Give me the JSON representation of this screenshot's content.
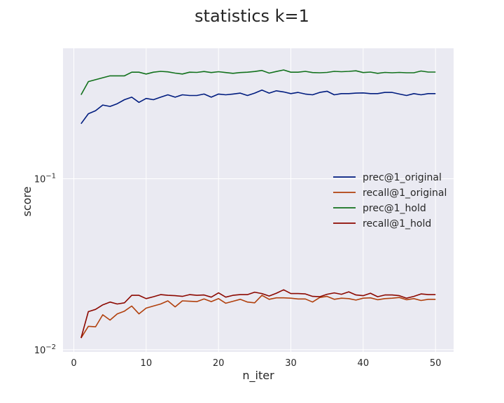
{
  "chart_data": {
    "type": "line",
    "title": "statistics k=1",
    "xlabel": "n_iter",
    "ylabel": "score",
    "yscale": "log",
    "xlim": [
      -1.5,
      52.5
    ],
    "ylim": [
      0.0097,
      0.58
    ],
    "x_ticks": [
      0,
      10,
      20,
      30,
      40,
      50
    ],
    "y_ticks": [
      {
        "value": 0.1,
        "base": "10",
        "exp": "−1"
      },
      {
        "value": 0.01,
        "base": "10",
        "exp": "−2"
      }
    ],
    "grid": true,
    "legend_position": "right",
    "x": [
      1,
      2,
      3,
      4,
      5,
      6,
      7,
      8,
      9,
      10,
      11,
      12,
      13,
      14,
      15,
      16,
      17,
      18,
      19,
      20,
      21,
      22,
      23,
      24,
      25,
      26,
      27,
      28,
      29,
      30,
      31,
      32,
      33,
      34,
      35,
      36,
      37,
      38,
      39,
      40,
      41,
      42,
      43,
      44,
      45,
      46,
      47,
      48,
      49,
      50
    ],
    "series": [
      {
        "name": "prec@1_original",
        "color": "#001c7f",
        "values": [
          0.21,
          0.24,
          0.25,
          0.27,
          0.265,
          0.275,
          0.29,
          0.3,
          0.28,
          0.295,
          0.29,
          0.3,
          0.31,
          0.3,
          0.31,
          0.307,
          0.307,
          0.313,
          0.3,
          0.313,
          0.31,
          0.313,
          0.317,
          0.307,
          0.317,
          0.33,
          0.317,
          0.327,
          0.322,
          0.315,
          0.32,
          0.313,
          0.31,
          0.32,
          0.325,
          0.31,
          0.315,
          0.315,
          0.317,
          0.318,
          0.315,
          0.315,
          0.32,
          0.32,
          0.313,
          0.307,
          0.315,
          0.31,
          0.315,
          0.315
        ]
      },
      {
        "name": "recall@1_original",
        "color": "#b1400d",
        "values": [
          0.0117,
          0.0137,
          0.0136,
          0.016,
          0.0149,
          0.0162,
          0.0168,
          0.018,
          0.0162,
          0.0175,
          0.018,
          0.0185,
          0.0193,
          0.0178,
          0.0193,
          0.0192,
          0.0191,
          0.0198,
          0.0191,
          0.0199,
          0.0187,
          0.0192,
          0.0197,
          0.019,
          0.0188,
          0.0208,
          0.0197,
          0.0201,
          0.0201,
          0.02,
          0.0198,
          0.0198,
          0.019,
          0.0202,
          0.0205,
          0.0197,
          0.02,
          0.0199,
          0.0195,
          0.02,
          0.0201,
          0.0196,
          0.0199,
          0.02,
          0.0202,
          0.0196,
          0.0199,
          0.0194,
          0.0197,
          0.0197
        ]
      },
      {
        "name": "prec@1_hold",
        "color": "#12711c",
        "values": [
          0.31,
          0.37,
          0.38,
          0.39,
          0.4,
          0.4,
          0.4,
          0.42,
          0.42,
          0.41,
          0.42,
          0.425,
          0.422,
          0.415,
          0.41,
          0.42,
          0.419,
          0.424,
          0.418,
          0.423,
          0.418,
          0.414,
          0.418,
          0.42,
          0.424,
          0.43,
          0.415,
          0.424,
          0.433,
          0.42,
          0.42,
          0.425,
          0.418,
          0.417,
          0.419,
          0.425,
          0.423,
          0.425,
          0.428,
          0.418,
          0.421,
          0.414,
          0.419,
          0.417,
          0.419,
          0.417,
          0.417,
          0.427,
          0.421,
          0.421
        ]
      },
      {
        "name": "recall@1_hold",
        "color": "#8c0800",
        "values": [
          0.0117,
          0.0167,
          0.0172,
          0.0183,
          0.019,
          0.0185,
          0.0188,
          0.0208,
          0.0208,
          0.0199,
          0.0204,
          0.021,
          0.0208,
          0.0207,
          0.0205,
          0.021,
          0.0208,
          0.0209,
          0.0203,
          0.0215,
          0.0203,
          0.0208,
          0.021,
          0.021,
          0.0217,
          0.0213,
          0.0206,
          0.0214,
          0.0224,
          0.0213,
          0.0213,
          0.0212,
          0.0205,
          0.0204,
          0.0211,
          0.0215,
          0.0211,
          0.0218,
          0.0209,
          0.0207,
          0.0214,
          0.0204,
          0.0209,
          0.0209,
          0.0207,
          0.02,
          0.0205,
          0.0212,
          0.021,
          0.021
        ]
      }
    ]
  }
}
